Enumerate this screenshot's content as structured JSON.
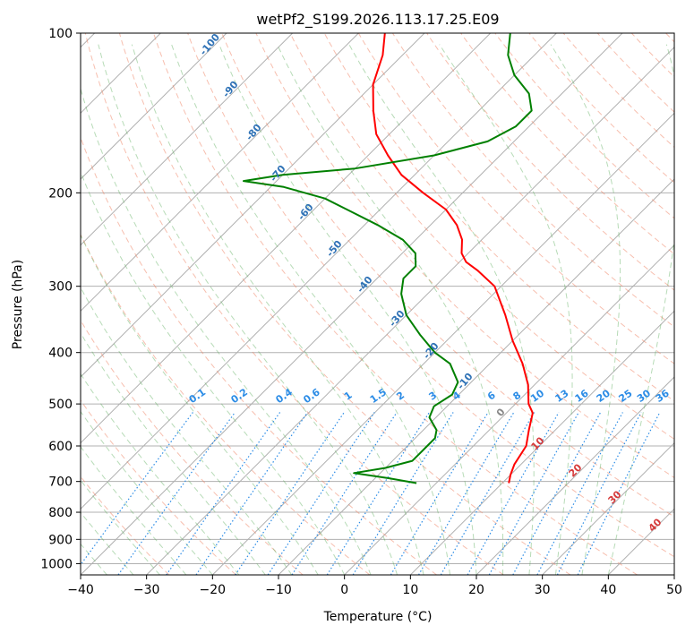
{
  "chart_data": {
    "type": "line",
    "title": "wetPf2_S199.2026.113.17.25.E09",
    "xlabel": "Temperature (°C)",
    "ylabel": "Pressure (hPa)",
    "xlim": [
      -40,
      50
    ],
    "ylim": [
      1050,
      100
    ],
    "y_scale": "log",
    "skew_degrees": 45,
    "grid": true,
    "x_ticks": [
      -40,
      -30,
      -20,
      -10,
      0,
      10,
      20,
      30,
      40,
      50
    ],
    "x_tick_labels": [
      "−40",
      "−30",
      "−20",
      "−10",
      "0",
      "10",
      "20",
      "30",
      "40",
      "50"
    ],
    "y_ticks": [
      1000,
      900,
      800,
      700,
      600,
      500,
      400,
      300,
      200,
      100
    ],
    "y_tick_labels": [
      "1000",
      "900",
      "800",
      "700",
      "600",
      "500",
      "400",
      "300",
      "200",
      "100"
    ],
    "series": [
      {
        "kind": "temperature",
        "color": "#ff0000",
        "pressure": [
          705,
          680,
          650,
          600,
          560,
          520,
          500,
          460,
          420,
          380,
          340,
          300,
          280,
          270,
          260,
          245,
          230,
          215,
          200,
          185,
          170,
          155,
          140,
          125,
          110,
          100
        ],
        "values": [
          11,
          10,
          9,
          8,
          6,
          4,
          2,
          -1,
          -5,
          -10,
          -15,
          -21,
          -26,
          -29,
          -31,
          -33,
          -36,
          -40,
          -46,
          -52,
          -57,
          -62,
          -66,
          -70,
          -73,
          -76
        ]
      },
      {
        "kind": "dewpoint",
        "color": "#008000",
        "pressure": [
          705,
          690,
          675,
          660,
          640,
          620,
          600,
          580,
          560,
          530,
          505,
          480,
          455,
          420,
          400,
          370,
          340,
          310,
          290,
          275,
          260,
          245,
          230,
          215,
          205,
          195,
          190,
          185,
          180,
          170,
          160,
          150,
          140,
          130,
          120,
          110,
          100
        ],
        "values": [
          -3,
          -8,
          -14,
          -10,
          -7,
          -7,
          -7,
          -7,
          -8,
          -11,
          -12,
          -11,
          -12,
          -16,
          -20,
          -25,
          -30,
          -34,
          -36,
          -36,
          -38,
          -42,
          -48,
          -55,
          -60,
          -68,
          -75,
          -70,
          -60,
          -50,
          -44,
          -42,
          -42,
          -45,
          -50,
          -54,
          -57
        ]
      }
    ],
    "mixing_ratio_labels": [
      "0.1",
      "0.2",
      "0.4",
      "0.6",
      "1",
      "1.5",
      "2",
      "3",
      "4",
      "6",
      "8",
      "10",
      "13",
      "16",
      "20",
      "25",
      "30",
      "36"
    ],
    "dry_adiabat_labels": [
      "-100",
      "-90",
      "-80",
      "-70",
      "-60",
      "-50",
      "-40",
      "-30",
      "-20",
      "-10",
      "0"
    ],
    "moist_adiabat_labels": [
      "10",
      "20",
      "30",
      "40"
    ],
    "colors": {
      "temperature": "#ff0000",
      "dewpoint": "#008000",
      "dry_adiabat": "#f08060",
      "moist_adiabat": "#60b060",
      "mixing_ratio": "#2b8ce6",
      "isotherm": "#808080",
      "isobar": "#a0a0a0"
    }
  }
}
